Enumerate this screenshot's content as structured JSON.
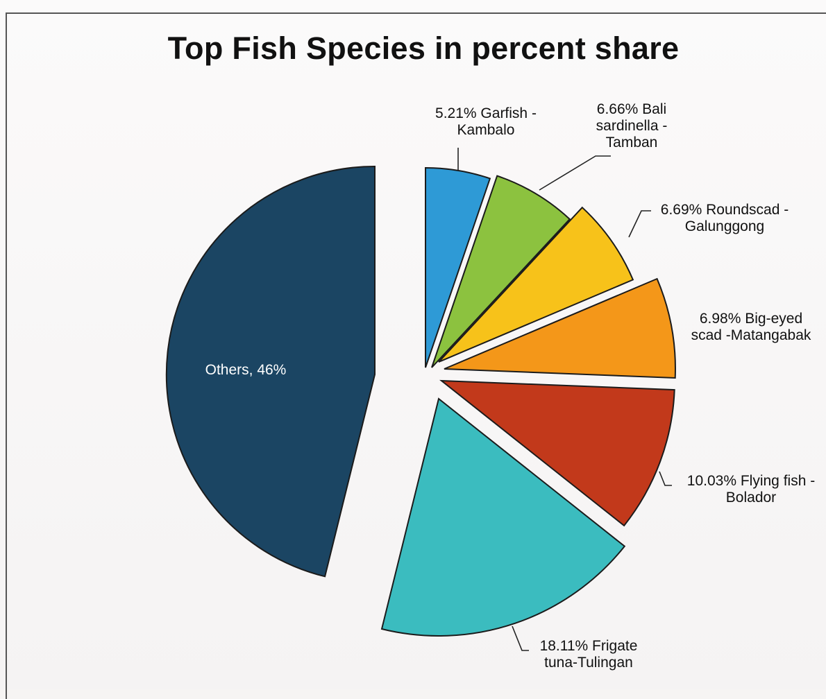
{
  "chart_data": {
    "type": "pie",
    "title": "Top Fish Species in percent share",
    "slices": [
      {
        "label": "Garfish - Kambalo",
        "value": 5.21,
        "text": [
          "5.21% Garfish -",
          "Kambalo"
        ],
        "color": "#2e9ad6"
      },
      {
        "label": "Bali sardinella - Tamban",
        "value": 6.66,
        "text": [
          "6.66% Bali",
          "sardinella -",
          "Tamban"
        ],
        "color": "#8cc23f"
      },
      {
        "label": "Roundscad - Galunggong",
        "value": 6.69,
        "text": [
          "6.69% Roundscad -",
          "Galunggong"
        ],
        "color": "#f7c21a"
      },
      {
        "label": "Big-eyed scad - Matangabak",
        "value": 6.98,
        "text": [
          "6.98% Big-eyed",
          "scad -Matangabak"
        ],
        "color": "#f49719"
      },
      {
        "label": "Flying fish - Bolador",
        "value": 10.03,
        "text": [
          "10.03% Flying fish -",
          "Bolador"
        ],
        "color": "#c2391b"
      },
      {
        "label": "Frigate tuna - Tulingan",
        "value": 18.11,
        "text": [
          "18.11% Frigate",
          "tuna-Tulingan"
        ],
        "color": "#3bbcbf"
      },
      {
        "label": "Others",
        "value": 46,
        "text": [
          "Others,  46%"
        ],
        "color": "#1b4563"
      }
    ]
  }
}
